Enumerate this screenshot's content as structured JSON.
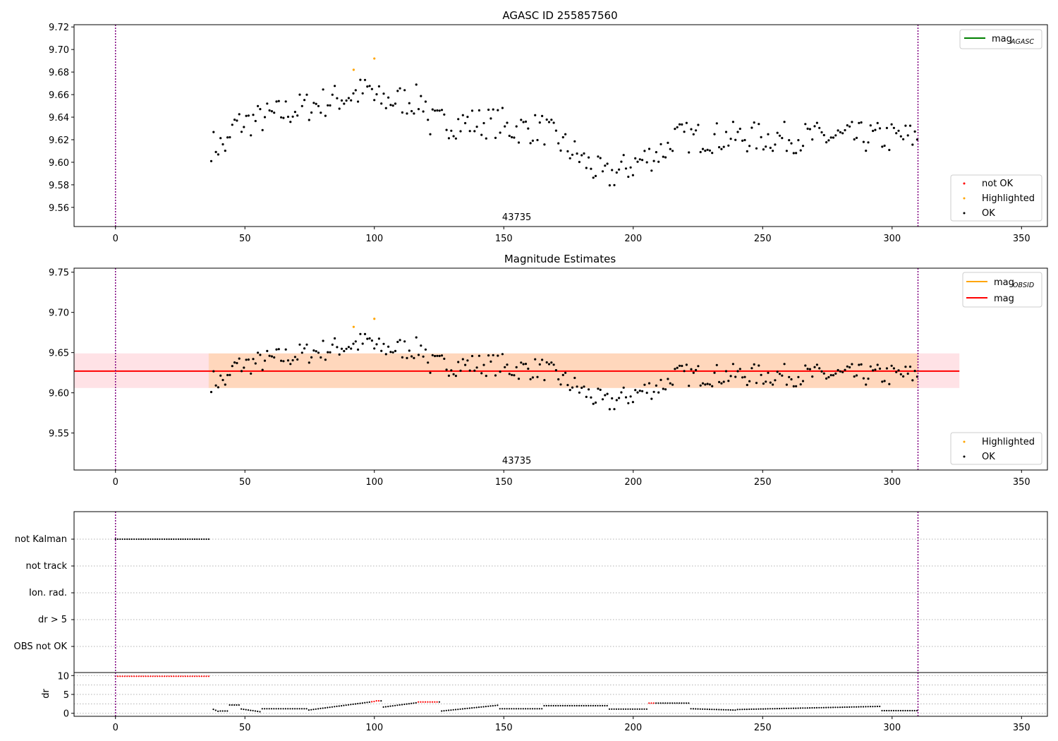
{
  "chart_data": [
    {
      "type": "scatter",
      "title": "AGASC ID 255857560",
      "xlim": [
        -16,
        360
      ],
      "ylim": [
        9.543,
        9.722
      ],
      "xticks": [
        0,
        50,
        100,
        150,
        200,
        250,
        300,
        350
      ],
      "yticks": [
        9.56,
        9.58,
        9.6,
        9.62,
        9.64,
        9.66,
        9.68,
        9.7,
        9.72
      ],
      "ytick_labels": [
        "9.56",
        "9.58",
        "9.60",
        "9.62",
        "9.64",
        "9.66",
        "9.68",
        "9.70",
        "9.72"
      ],
      "vlines": [
        0,
        310
      ],
      "obsid_label": {
        "text": "43735",
        "x": 155
      },
      "legend_lines": [
        {
          "label": "mag",
          "subscript": "AGASC",
          "color": "#008000"
        }
      ],
      "legend_points": [
        {
          "label": "not OK",
          "color": "#ff0000"
        },
        {
          "label": "Highlighted",
          "color": "#ffa500"
        },
        {
          "label": "OK",
          "color": "#000000"
        }
      ],
      "highlighted": {
        "x": [
          92,
          100
        ],
        "y": [
          9.682,
          9.692
        ]
      },
      "not_ok": {
        "x": [],
        "y": []
      }
    },
    {
      "type": "scatter",
      "title": "Magnitude Estimates",
      "xlim": [
        -16,
        360
      ],
      "ylim": [
        9.504,
        9.755
      ],
      "xticks": [
        0,
        50,
        100,
        150,
        200,
        250,
        300,
        350
      ],
      "yticks": [
        9.55,
        9.6,
        9.65,
        9.7,
        9.75
      ],
      "ytick_labels": [
        "9.55",
        "9.60",
        "9.65",
        "9.70",
        "9.75"
      ],
      "vlines": [
        0,
        310
      ],
      "obsid_label": {
        "text": "43735",
        "x": 155
      },
      "mag_line": 9.627,
      "band": [
        9.606,
        9.649
      ],
      "band_xend": 326,
      "legend_lines": [
        {
          "label": "mag",
          "subscript": "OBSID",
          "color": "#ffa500"
        },
        {
          "label": "mag",
          "subscript": "",
          "color": "#ff0000"
        }
      ],
      "legend_points": [
        {
          "label": "Highlighted",
          "color": "#ffa500"
        },
        {
          "label": "OK",
          "color": "#000000"
        }
      ],
      "highlighted": {
        "x": [
          92,
          100
        ],
        "y": [
          9.682,
          9.692
        ]
      }
    },
    {
      "type": "scatter",
      "flag_labels": [
        "not Kalman",
        "not track",
        "Ion. rad.",
        "dr > 5",
        "OBS not OK"
      ],
      "not_kalman_range": [
        0,
        36
      ],
      "xlim": [
        -16,
        360
      ],
      "vlines": [
        0,
        310
      ],
      "xticks": [
        0,
        50,
        100,
        150,
        200,
        250,
        300,
        350
      ],
      "dr_ylabel": "dr",
      "dr_ylim": [
        -0.8,
        10.8
      ],
      "dr_yticks": [
        0,
        5,
        10
      ],
      "dr_ytick_labels": [
        "0",
        "5",
        "10"
      ],
      "dr_red_ranges": [
        [
          0,
          36
        ],
        [
          99,
          102
        ],
        [
          117,
          125
        ],
        [
          206,
          208
        ]
      ]
    }
  ]
}
